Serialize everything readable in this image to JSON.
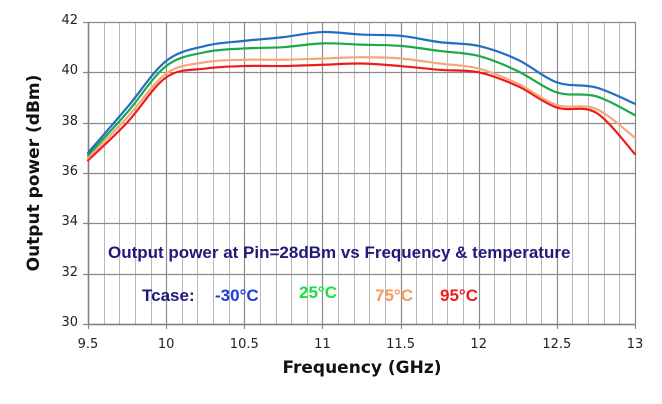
{
  "chart_data": {
    "type": "line",
    "title": "Output power at Pin=28dBm vs Frequency & temperature",
    "xlabel": "Frequency (GHz)",
    "ylabel": "Output power (dBm)",
    "xlim": [
      9.5,
      13
    ],
    "ylim": [
      30,
      42
    ],
    "x_ticks": [
      "9.5",
      "10",
      "10.5",
      "11",
      "11.5",
      "12",
      "12.5",
      "13"
    ],
    "y_ticks": [
      "30",
      "32",
      "34",
      "36",
      "38",
      "40",
      "42"
    ],
    "grid": {
      "major_x": 0.5,
      "minor_x": 0.1,
      "major_y": 2
    },
    "legend": {
      "label": "Tcase:",
      "position": "inside-bottom"
    },
    "x": [
      9.5,
      9.75,
      10.0,
      10.25,
      10.5,
      10.75,
      11.0,
      11.25,
      11.5,
      11.75,
      12.0,
      12.25,
      12.5,
      12.75,
      13.0
    ],
    "series": [
      {
        "name": "-30°C",
        "color": "#1f6fc4",
        "values": [
          36.8,
          38.6,
          40.45,
          41.05,
          41.25,
          41.4,
          41.6,
          41.5,
          41.45,
          41.2,
          41.05,
          40.5,
          39.6,
          39.4,
          38.75
        ]
      },
      {
        "name": "25°C",
        "color": "#1aaa4a",
        "values": [
          36.7,
          38.4,
          40.25,
          40.8,
          40.95,
          41.0,
          41.15,
          41.1,
          41.05,
          40.85,
          40.65,
          40.05,
          39.2,
          39.05,
          38.3
        ]
      },
      {
        "name": "75°C",
        "color": "#f4a878",
        "values": [
          36.6,
          38.2,
          39.95,
          40.4,
          40.5,
          40.5,
          40.55,
          40.6,
          40.55,
          40.35,
          40.15,
          39.55,
          38.7,
          38.55,
          37.4
        ]
      },
      {
        "name": "95°C",
        "color": "#ee1c1c",
        "values": [
          36.5,
          38.0,
          39.8,
          40.15,
          40.25,
          40.25,
          40.3,
          40.35,
          40.25,
          40.1,
          40.0,
          39.45,
          38.6,
          38.4,
          36.75
        ]
      }
    ]
  },
  "annotation": {
    "title": "Output power at Pin=28dBm vs Frequency & temperature",
    "legend_label": "Tcase:",
    "legend_items": [
      {
        "label": "-30°C",
        "color": "#1f3fd8"
      },
      {
        "label": "25°C",
        "color": "#19e13c"
      },
      {
        "label": "75°C",
        "color": "#f79a5c"
      },
      {
        "label": "95°C",
        "color": "#ee1c1c"
      }
    ]
  }
}
